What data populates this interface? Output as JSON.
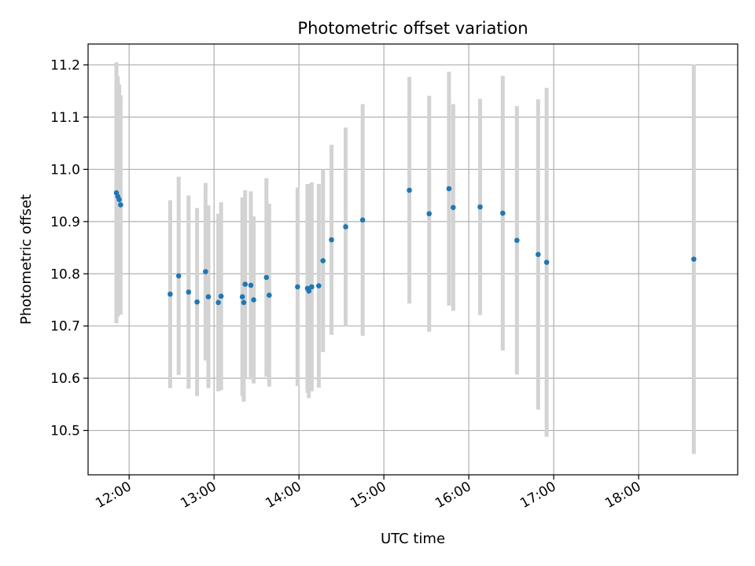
{
  "chart_data": {
    "type": "scatter",
    "title": "Photometric offset variation",
    "xlabel": "UTC time",
    "ylabel": "Photometric offset",
    "grid": true,
    "errorbar_color": "#d3d3d3",
    "point_color": "#1f77b4",
    "xlim": [
      "11:31",
      "19:10"
    ],
    "ylim": [
      10.415,
      11.24
    ],
    "x_ticks": [
      "12:00",
      "13:00",
      "14:00",
      "15:00",
      "16:00",
      "17:00",
      "18:00"
    ],
    "y_ticks": [
      "10.5",
      "10.6",
      "10.7",
      "10.8",
      "10.9",
      "11.0",
      "11.1",
      "11.2"
    ],
    "series": [
      {
        "points": [
          {
            "x": "11:51",
            "y": 10.955,
            "err": 0.25
          },
          {
            "x": "11:52",
            "y": 10.948,
            "err": 0.23
          },
          {
            "x": "11:53",
            "y": 10.942,
            "err": 0.22
          },
          {
            "x": "11:54",
            "y": 10.932,
            "err": 0.21
          },
          {
            "x": "12:29",
            "y": 10.761,
            "err": 0.18
          },
          {
            "x": "12:35",
            "y": 10.796,
            "err": 0.19
          },
          {
            "x": "12:42",
            "y": 10.765,
            "err": 0.185
          },
          {
            "x": "12:48",
            "y": 10.746,
            "err": 0.18
          },
          {
            "x": "12:54",
            "y": 10.804,
            "err": 0.17
          },
          {
            "x": "12:56",
            "y": 10.756,
            "err": 0.175
          },
          {
            "x": "13:03",
            "y": 10.745,
            "err": 0.17
          },
          {
            "x": "13:05",
            "y": 10.757,
            "err": 0.18
          },
          {
            "x": "13:20",
            "y": 10.756,
            "err": 0.19
          },
          {
            "x": "13:21",
            "y": 10.745,
            "err": 0.19
          },
          {
            "x": "13:22",
            "y": 10.78,
            "err": 0.18
          },
          {
            "x": "13:26",
            "y": 10.778,
            "err": 0.18
          },
          {
            "x": "13:28",
            "y": 10.75,
            "err": 0.16
          },
          {
            "x": "13:37",
            "y": 10.793,
            "err": 0.19
          },
          {
            "x": "13:39",
            "y": 10.759,
            "err": 0.175
          },
          {
            "x": "13:59",
            "y": 10.775,
            "err": 0.19
          },
          {
            "x": "14:06",
            "y": 10.772,
            "err": 0.2
          },
          {
            "x": "14:07",
            "y": 10.767,
            "err": 0.205
          },
          {
            "x": "14:09",
            "y": 10.775,
            "err": 0.2
          },
          {
            "x": "14:14",
            "y": 10.777,
            "err": 0.195
          },
          {
            "x": "14:17",
            "y": 10.825,
            "err": 0.175
          },
          {
            "x": "14:23",
            "y": 10.865,
            "err": 0.182
          },
          {
            "x": "14:33",
            "y": 10.89,
            "err": 0.19
          },
          {
            "x": "14:45",
            "y": 10.903,
            "err": 0.222
          },
          {
            "x": "15:18",
            "y": 10.96,
            "err": 0.217
          },
          {
            "x": "15:32",
            "y": 10.915,
            "err": 0.226
          },
          {
            "x": "15:46",
            "y": 10.963,
            "err": 0.224
          },
          {
            "x": "15:49",
            "y": 10.927,
            "err": 0.198
          },
          {
            "x": "16:08",
            "y": 10.928,
            "err": 0.207
          },
          {
            "x": "16:24",
            "y": 10.916,
            "err": 0.263
          },
          {
            "x": "16:34",
            "y": 10.864,
            "err": 0.257
          },
          {
            "x": "16:49",
            "y": 10.837,
            "err": 0.297
          },
          {
            "x": "16:55",
            "y": 10.822,
            "err": 0.334
          },
          {
            "x": "18:39",
            "y": 10.828,
            "err": 0.373
          }
        ]
      }
    ]
  }
}
